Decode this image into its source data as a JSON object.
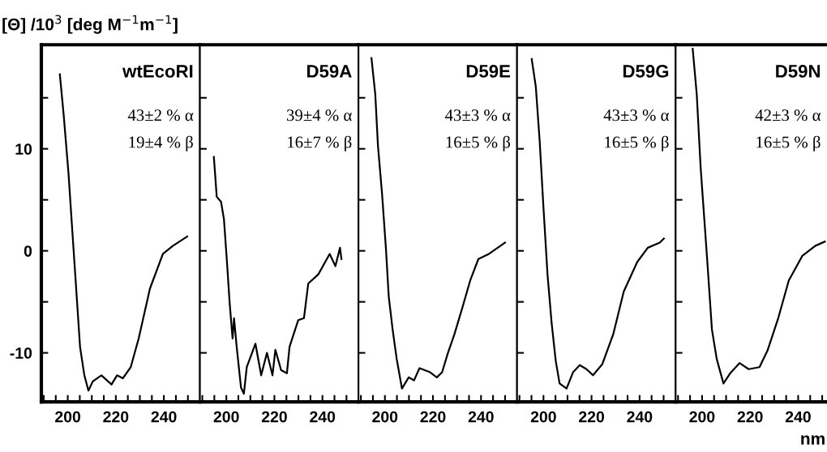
{
  "chart_data": [
    {
      "type": "line",
      "title": "wtEcoRI",
      "ylabel": "[Θ] /10$^{3}$ [deg M$^{−1}$m$^{−1}$]",
      "annotations": [
        "43±2 % α",
        "19±4 % β"
      ],
      "xlim": [
        189,
        255
      ],
      "ylim": [
        -14.8,
        20.2
      ],
      "xticks": [
        {
          "value": 190,
          "label": null
        },
        {
          "value": 195,
          "label": null
        },
        200,
        {
          "value": 205,
          "label": null
        },
        {
          "value": 210,
          "label": null
        },
        {
          "value": 215,
          "label": null
        },
        220,
        {
          "value": 225,
          "label": null
        },
        {
          "value": 230,
          "label": null
        },
        {
          "value": 235,
          "label": null
        },
        240,
        {
          "value": 245,
          "label": null
        },
        {
          "value": 250,
          "label": null
        }
      ],
      "yticks": [
        -10,
        {
          "value": -5,
          "label": null
        },
        0,
        {
          "value": 5,
          "label": null
        },
        10,
        {
          "value": 15,
          "label": null
        }
      ],
      "series": [
        {
          "color": "#000000",
          "x": [
            196.7,
            198.3,
            200.3,
            201.9,
            203.5,
            205.1,
            206.9,
            208.6,
            210.4,
            214,
            218.2,
            220.5,
            222.9,
            226.2,
            229.5,
            234.2,
            239.6,
            243.8,
            249.7
          ],
          "values": [
            17.3,
            13.3,
            7.6,
            1.9,
            -3.7,
            -9.4,
            -12.2,
            -13.7,
            -12.8,
            -12.2,
            -13.1,
            -12.2,
            -12.5,
            -11.4,
            -8.6,
            -3.7,
            -0.3,
            0.5,
            1.4
          ]
        }
      ]
    },
    {
      "type": "line",
      "title": "D59A",
      "annotations": [
        "39±4 % α",
        "16±7 % β"
      ],
      "xlim": [
        189,
        255
      ],
      "ylim": [
        -14.8,
        20.2
      ],
      "tick_labels": "x",
      "xticks": [
        {
          "value": 190,
          "label": null
        },
        {
          "value": 195,
          "label": null
        },
        200,
        {
          "value": 205,
          "label": null
        },
        {
          "value": 210,
          "label": null
        },
        {
          "value": 215,
          "label": null
        },
        220,
        {
          "value": 225,
          "label": null
        },
        {
          "value": 230,
          "label": null
        },
        {
          "value": 235,
          "label": null
        },
        240,
        {
          "value": 245,
          "label": null
        },
        {
          "value": 250,
          "label": null
        }
      ],
      "yticks": [
        -10,
        {
          "value": -5,
          "label": null
        },
        0,
        {
          "value": 5,
          "label": null
        },
        10,
        {
          "value": 15,
          "label": null
        }
      ],
      "series": [
        {
          "color": "#000000",
          "x": [
            194.8,
            196,
            197.8,
            199,
            200.2,
            201.4,
            202.6,
            203.2,
            204.3,
            206.1,
            207.3,
            208.5,
            212.1,
            214.5,
            216.9,
            219.2,
            220.4,
            222.8,
            225.2,
            226.3,
            229.9,
            232.3,
            234.1,
            238.3,
            243,
            245.4,
            247.3,
            247.9
          ],
          "values": [
            9.2,
            5.3,
            4.8,
            3.1,
            -0.9,
            -5.2,
            -8.6,
            -6.6,
            -9.4,
            -13.4,
            -14.0,
            -11.4,
            -9.1,
            -12.2,
            -10.0,
            -12.2,
            -9.7,
            -11.7,
            -12.0,
            -9.4,
            -6.8,
            -6.6,
            -3.2,
            -2.3,
            -0.3,
            -1.5,
            0.3,
            -0.8
          ]
        }
      ]
    },
    {
      "type": "line",
      "title": "D59E",
      "annotations": [
        "43±3 % α",
        "16±5 % β"
      ],
      "xlim": [
        189,
        255
      ],
      "ylim": [
        -14.8,
        20.2
      ],
      "tick_labels": "x",
      "xticks": [
        {
          "value": 190,
          "label": null
        },
        {
          "value": 195,
          "label": null
        },
        200,
        {
          "value": 205,
          "label": null
        },
        {
          "value": 210,
          "label": null
        },
        {
          "value": 215,
          "label": null
        },
        220,
        {
          "value": 225,
          "label": null
        },
        {
          "value": 230,
          "label": null
        },
        {
          "value": 235,
          "label": null
        },
        240,
        {
          "value": 245,
          "label": null
        },
        {
          "value": 250,
          "label": null
        }
      ],
      "yticks": [
        -10,
        {
          "value": -5,
          "label": null
        },
        0,
        {
          "value": 5,
          "label": null
        },
        10,
        {
          "value": 15,
          "label": null
        }
      ],
      "series": [
        {
          "color": "#000000",
          "x": [
            194.4,
            196,
            197.1,
            198.8,
            200.4,
            201.6,
            203.2,
            204.9,
            207.1,
            209.9,
            212.1,
            214.4,
            218.8,
            221.6,
            223.8,
            226.1,
            228.9,
            232.2,
            235.5,
            238.9,
            243.3,
            250
          ],
          "values": [
            18.9,
            15.3,
            10.3,
            5.6,
            0.3,
            -4.5,
            -7.7,
            -10.6,
            -13.5,
            -12.4,
            -12.7,
            -11.5,
            -11.9,
            -12.4,
            -11.9,
            -10.1,
            -8.2,
            -5.6,
            -2.9,
            -0.8,
            -0.3,
            0.8
          ]
        }
      ]
    },
    {
      "type": "line",
      "title": "D59G",
      "annotations": [
        "43±3 % α",
        "16±5 % β"
      ],
      "xlim": [
        189,
        255
      ],
      "ylim": [
        -14.8,
        20.2
      ],
      "tick_labels": "x",
      "xticks": [
        {
          "value": 190,
          "label": null
        },
        {
          "value": 195,
          "label": null
        },
        200,
        {
          "value": 205,
          "label": null
        },
        {
          "value": 210,
          "label": null
        },
        {
          "value": 215,
          "label": null
        },
        220,
        {
          "value": 225,
          "label": null
        },
        {
          "value": 230,
          "label": null
        },
        {
          "value": 235,
          "label": null
        },
        240,
        {
          "value": 245,
          "label": null
        },
        {
          "value": 250,
          "label": null
        }
      ],
      "yticks": [
        -10,
        {
          "value": -5,
          "label": null
        },
        0,
        {
          "value": 5,
          "label": null
        },
        10,
        {
          "value": 15,
          "label": null
        }
      ],
      "series": [
        {
          "color": "#000000",
          "x": [
            195.1,
            196.8,
            198.4,
            200,
            201.7,
            203.4,
            205.1,
            206.7,
            209.6,
            212.3,
            215.1,
            217.9,
            220.6,
            224.5,
            229,
            233.4,
            239,
            243.4,
            248.4,
            250.1
          ],
          "values": [
            18.8,
            16.1,
            10.8,
            4.2,
            -2.4,
            -7.1,
            -10.8,
            -13.0,
            -13.5,
            -11.9,
            -11.2,
            -11.6,
            -12.2,
            -11.1,
            -8.2,
            -4.0,
            -1.1,
            0.3,
            0.8,
            1.2
          ]
        }
      ]
    },
    {
      "type": "line",
      "title": "D59N",
      "xlabel": "nm",
      "annotations": [
        "42±3 % α",
        "16±5 % β"
      ],
      "xlim": [
        189,
        252
      ],
      "ylim": [
        -14.8,
        20.2
      ],
      "tick_labels": "x",
      "xticks": [
        {
          "value": 190,
          "label": null
        },
        {
          "value": 195,
          "label": null
        },
        200,
        {
          "value": 205,
          "label": null
        },
        {
          "value": 210,
          "label": null
        },
        {
          "value": 215,
          "label": null
        },
        220,
        {
          "value": 225,
          "label": null
        },
        {
          "value": 230,
          "label": null
        },
        {
          "value": 235,
          "label": null
        },
        240,
        {
          "value": 245,
          "label": null
        },
        {
          "value": 250,
          "label": null
        }
      ],
      "yticks": [
        -10,
        {
          "value": -5,
          "label": null
        },
        0,
        {
          "value": 5,
          "label": null
        },
        10,
        {
          "value": 15,
          "label": null
        }
      ],
      "series": [
        {
          "color": "#000000",
          "x": [
            196.1,
            197.8,
            199.4,
            202.2,
            204.1,
            206.1,
            208.9,
            211.7,
            215.6,
            219.4,
            223.9,
            227.2,
            231.7,
            236.1,
            241.7,
            247.2,
            251.1
          ],
          "values": [
            19.8,
            15.3,
            8.2,
            -1.1,
            -7.7,
            -10.6,
            -13.0,
            -12.0,
            -11.0,
            -11.6,
            -11.4,
            -9.8,
            -6.6,
            -2.9,
            -0.5,
            0.5,
            0.9
          ]
        }
      ]
    }
  ]
}
